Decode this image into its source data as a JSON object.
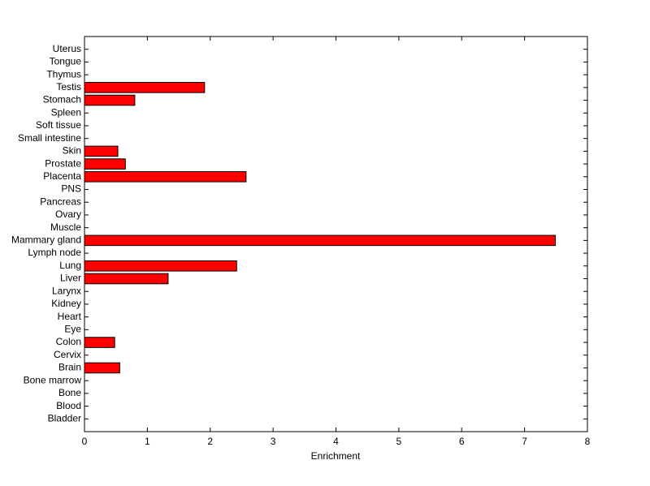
{
  "chart_data": {
    "type": "barh",
    "x_label": "Enrichment",
    "categories": [
      "Bladder",
      "Blood",
      "Bone",
      "Bone marrow",
      "Brain",
      "Cervix",
      "Colon",
      "Eye",
      "Heart",
      "Kidney",
      "Larynx",
      "Liver",
      "Lung",
      "Lymph node",
      "Mammary gland",
      "Muscle",
      "Ovary",
      "Pancreas",
      "PNS",
      "Placenta",
      "Prostate",
      "Skin",
      "Small intestine",
      "Soft tissue",
      "Spleen",
      "Stomach",
      "Testis",
      "Thymus",
      "Tongue",
      "Uterus"
    ],
    "values": [
      0,
      0,
      0,
      0,
      0.56,
      0,
      0.48,
      0,
      0,
      0,
      0,
      1.33,
      2.42,
      0,
      7.49,
      0,
      0,
      0,
      0,
      2.57,
      0.65,
      0.53,
      0,
      0,
      0,
      0.8,
      1.91,
      0,
      0,
      0
    ],
    "color": "#ff0000",
    "xlim": [
      0,
      8
    ],
    "xticks": [
      0,
      1,
      2,
      3,
      4,
      5,
      6,
      7,
      8
    ]
  }
}
